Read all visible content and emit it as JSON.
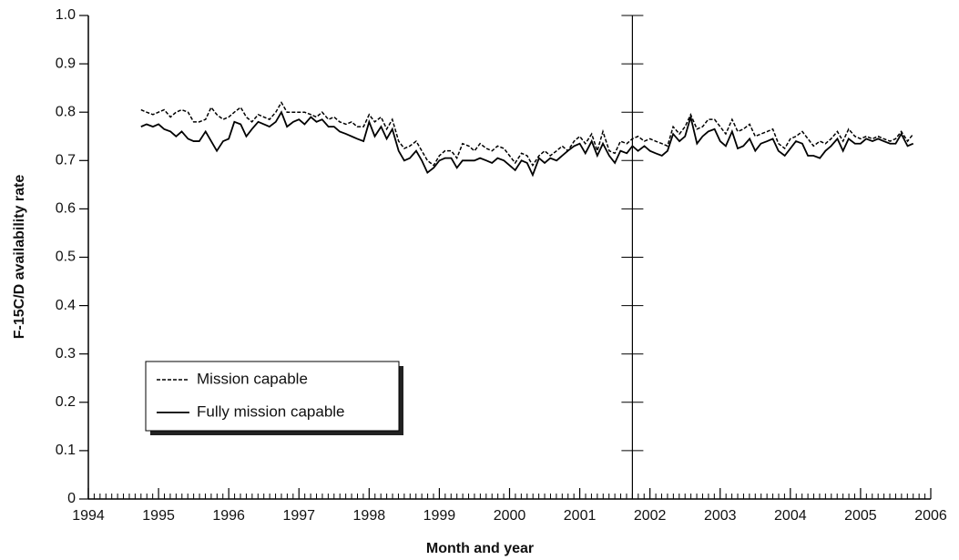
{
  "chart_data": {
    "type": "line",
    "y_label": "F-15C/D availability rate",
    "x_label": "Month and year",
    "xlim": [
      1994,
      2006
    ],
    "xticks": [
      1994,
      1995,
      1996,
      1997,
      1998,
      1999,
      2000,
      2001,
      2002,
      2003,
      2004,
      2005,
      2006
    ],
    "ylim": [
      0,
      1
    ],
    "yticks": [
      0,
      0.1,
      0.2,
      0.3,
      0.4,
      0.5,
      0.6,
      0.7,
      0.8,
      0.9,
      {
        "value": 1,
        "label": "1.0"
      }
    ],
    "reference_line_x": 2001.75,
    "legend": "lower left",
    "x": [
      1994.75,
      1994.83,
      1994.92,
      1995,
      1995.08,
      1995.17,
      1995.25,
      1995.33,
      1995.42,
      1995.5,
      1995.58,
      1995.67,
      1995.75,
      1995.83,
      1995.92,
      1996,
      1996.08,
      1996.17,
      1996.25,
      1996.33,
      1996.42,
      1996.5,
      1996.58,
      1996.67,
      1996.75,
      1996.83,
      1996.92,
      1997,
      1997.08,
      1997.17,
      1997.25,
      1997.33,
      1997.42,
      1997.5,
      1997.58,
      1997.67,
      1997.75,
      1997.83,
      1997.92,
      1998,
      1998.08,
      1998.17,
      1998.25,
      1998.33,
      1998.42,
      1998.5,
      1998.58,
      1998.67,
      1998.75,
      1998.83,
      1998.92,
      1999,
      1999.08,
      1999.17,
      1999.25,
      1999.33,
      1999.42,
      1999.5,
      1999.58,
      1999.67,
      1999.75,
      1999.83,
      1999.92,
      2000,
      2000.08,
      2000.17,
      2000.25,
      2000.33,
      2000.42,
      2000.5,
      2000.58,
      2000.67,
      2000.75,
      2000.83,
      2000.92,
      2001,
      2001.08,
      2001.17,
      2001.25,
      2001.33,
      2001.42,
      2001.5,
      2001.58,
      2001.67,
      2001.75,
      2001.83,
      2001.92,
      2002,
      2002.08,
      2002.17,
      2002.25,
      2002.33,
      2002.42,
      2002.5,
      2002.58,
      2002.67,
      2002.75,
      2002.83,
      2002.92,
      2003,
      2003.08,
      2003.17,
      2003.25,
      2003.33,
      2003.42,
      2003.5,
      2003.58,
      2003.67,
      2003.75,
      2003.83,
      2003.92,
      2004,
      2004.08,
      2004.17,
      2004.25,
      2004.33,
      2004.42,
      2004.5,
      2004.58,
      2004.67,
      2004.75,
      2004.83,
      2004.92,
      2005,
      2005.08,
      2005.17,
      2005.25,
      2005.33,
      2005.42,
      2005.5,
      2005.58,
      2005.67,
      2005.75
    ],
    "series": [
      {
        "name": "Mission capable",
        "color": "#000000",
        "dash": true,
        "values": [
          0.805,
          0.8,
          0.795,
          0.8,
          0.805,
          0.79,
          0.8,
          0.805,
          0.8,
          0.78,
          0.78,
          0.785,
          0.81,
          0.795,
          0.785,
          0.79,
          0.8,
          0.81,
          0.79,
          0.78,
          0.795,
          0.79,
          0.785,
          0.8,
          0.82,
          0.8,
          0.8,
          0.8,
          0.8,
          0.795,
          0.79,
          0.8,
          0.785,
          0.79,
          0.78,
          0.775,
          0.78,
          0.77,
          0.77,
          0.795,
          0.78,
          0.79,
          0.765,
          0.785,
          0.74,
          0.725,
          0.73,
          0.74,
          0.72,
          0.7,
          0.69,
          0.71,
          0.72,
          0.72,
          0.705,
          0.735,
          0.73,
          0.72,
          0.735,
          0.725,
          0.72,
          0.73,
          0.725,
          0.71,
          0.695,
          0.715,
          0.71,
          0.69,
          0.71,
          0.72,
          0.71,
          0.72,
          0.73,
          0.72,
          0.74,
          0.75,
          0.735,
          0.755,
          0.72,
          0.76,
          0.72,
          0.715,
          0.74,
          0.735,
          0.745,
          0.75,
          0.74,
          0.745,
          0.74,
          0.735,
          0.73,
          0.77,
          0.755,
          0.77,
          0.795,
          0.765,
          0.77,
          0.785,
          0.785,
          0.77,
          0.755,
          0.785,
          0.76,
          0.765,
          0.775,
          0.75,
          0.755,
          0.76,
          0.765,
          0.735,
          0.725,
          0.745,
          0.75,
          0.76,
          0.745,
          0.73,
          0.74,
          0.735,
          0.745,
          0.76,
          0.74,
          0.765,
          0.75,
          0.745,
          0.75,
          0.745,
          0.75,
          0.745,
          0.74,
          0.745,
          0.76,
          0.74,
          0.755
        ]
      },
      {
        "name": "Fully mission capable",
        "color": "#000000",
        "dash": false,
        "values": [
          0.77,
          0.775,
          0.77,
          0.775,
          0.765,
          0.76,
          0.75,
          0.76,
          0.745,
          0.74,
          0.74,
          0.76,
          0.74,
          0.72,
          0.74,
          0.745,
          0.78,
          0.775,
          0.75,
          0.765,
          0.78,
          0.775,
          0.77,
          0.78,
          0.8,
          0.77,
          0.78,
          0.785,
          0.775,
          0.79,
          0.78,
          0.785,
          0.77,
          0.77,
          0.76,
          0.755,
          0.75,
          0.745,
          0.74,
          0.78,
          0.75,
          0.77,
          0.745,
          0.765,
          0.72,
          0.7,
          0.705,
          0.72,
          0.7,
          0.675,
          0.685,
          0.7,
          0.705,
          0.705,
          0.685,
          0.7,
          0.7,
          0.7,
          0.705,
          0.7,
          0.695,
          0.705,
          0.7,
          0.69,
          0.68,
          0.7,
          0.695,
          0.67,
          0.705,
          0.695,
          0.705,
          0.7,
          0.71,
          0.72,
          0.73,
          0.735,
          0.715,
          0.74,
          0.71,
          0.735,
          0.71,
          0.695,
          0.72,
          0.715,
          0.73,
          0.72,
          0.73,
          0.72,
          0.715,
          0.71,
          0.72,
          0.755,
          0.74,
          0.75,
          0.79,
          0.735,
          0.75,
          0.76,
          0.765,
          0.74,
          0.73,
          0.76,
          0.725,
          0.73,
          0.745,
          0.72,
          0.735,
          0.74,
          0.745,
          0.72,
          0.71,
          0.725,
          0.74,
          0.735,
          0.71,
          0.71,
          0.705,
          0.72,
          0.73,
          0.745,
          0.72,
          0.745,
          0.735,
          0.735,
          0.745,
          0.74,
          0.745,
          0.74,
          0.735,
          0.735,
          0.755,
          0.73,
          0.735
        ]
      }
    ]
  }
}
